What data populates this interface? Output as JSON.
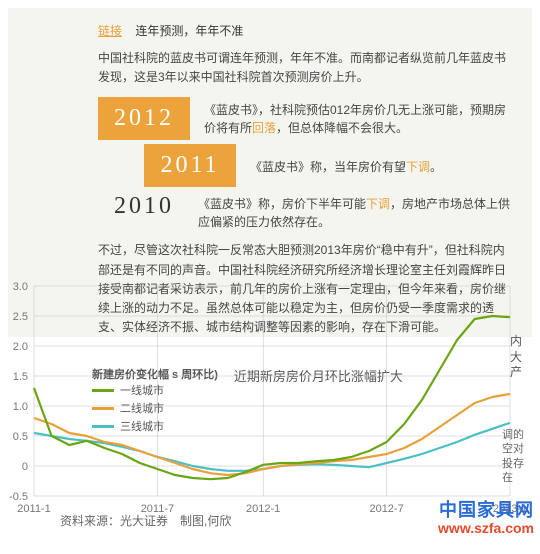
{
  "header": {
    "linkLabel": "链接",
    "title": "连年预测，年年不准"
  },
  "intro": "中国社科院的蓝皮书可谓连年预测，年年不准。而南都记者纵览前几年蓝皮书发现，这是3年以来中国社科院首次预测房价上升。",
  "timeline": {
    "y2012": {
      "year": "2012",
      "textA": "《蓝皮书》，社科院预估012年房价几无上涨可能，预期房价将有所",
      "hl": "回落",
      "textB": "，但总体降幅不会很大。"
    },
    "y2011": {
      "year": "2011",
      "textA": "《蓝皮书》称，当年房价有望",
      "hl": "下调",
      "textB": "。"
    },
    "y2010": {
      "year": "2010",
      "textA": "《蓝皮书》称，房价下半年可能",
      "hl": "下调",
      "textB": "，房地产市场总体上供应偏紧的压力依然存在。"
    }
  },
  "body": "不过，尽管这次社科院一反常态大胆预测2013年房价“稳中有升”，但社科院内部还是有不同的声音。中国社科院经济研究所经济增长理论室主任刘霞辉昨日接受南都记者采访表示，前几年的房价上涨有一定理由，但今年来看，房价继续上涨的动力不足。虽然总体可能以稳定为主，但房价仍受一季度需求的透支、实体经济不振、城市结构调整等因素的影响，存在下滑可能。",
  "chart": {
    "legendTitle": "新建房价变化幅 s 周环比)",
    "subtitle": "近期新房房价月环比涨幅扩大",
    "series": [
      {
        "name": "一线城市",
        "color": "#6aa514"
      },
      {
        "name": "二线城市",
        "color": "#e8a13a"
      },
      {
        "name": "三线城市",
        "color": "#4bbfc4"
      }
    ],
    "xLabels": [
      "2011-1",
      "2011-7",
      "2012-1",
      "2012-7",
      "2013-1"
    ],
    "yTicks": [
      -0.5,
      0,
      0.5,
      1,
      1.5,
      2,
      2.5,
      3
    ],
    "yMin": -0.5,
    "yMax": 3.0,
    "colors": {
      "bg": "#ffffff",
      "grid": "#bfbfbf",
      "axis": "#888888"
    },
    "data": {
      "tier1": [
        1.3,
        0.5,
        0.35,
        0.42,
        0.3,
        0.2,
        0.05,
        -0.05,
        -0.15,
        -0.2,
        -0.22,
        -0.2,
        -0.1,
        0.02,
        0.05,
        0.05,
        0.08,
        0.1,
        0.15,
        0.25,
        0.4,
        0.7,
        1.1,
        1.6,
        2.1,
        2.45,
        2.5,
        2.48
      ],
      "tier2": [
        0.8,
        0.7,
        0.55,
        0.5,
        0.4,
        0.35,
        0.25,
        0.15,
        0.05,
        -0.05,
        -0.12,
        -0.15,
        -0.12,
        -0.05,
        0.0,
        0.03,
        0.05,
        0.08,
        0.1,
        0.15,
        0.2,
        0.3,
        0.45,
        0.65,
        0.85,
        1.05,
        1.15,
        1.2
      ],
      "tier3": [
        0.55,
        0.5,
        0.45,
        0.42,
        0.38,
        0.32,
        0.25,
        0.15,
        0.08,
        0.0,
        -0.05,
        -0.08,
        -0.08,
        -0.05,
        0.0,
        0.02,
        0.03,
        0.02,
        0.0,
        -0.02,
        0.05,
        0.12,
        0.2,
        0.3,
        0.4,
        0.52,
        0.62,
        0.72
      ]
    }
  },
  "source": "资料来源：光大证券　制图,何欣",
  "watermark": {
    "cn": "中国家具网",
    "url": "www.szfa.com"
  },
  "sideText": "调的空对投存在",
  "sideText2": "内大产"
}
